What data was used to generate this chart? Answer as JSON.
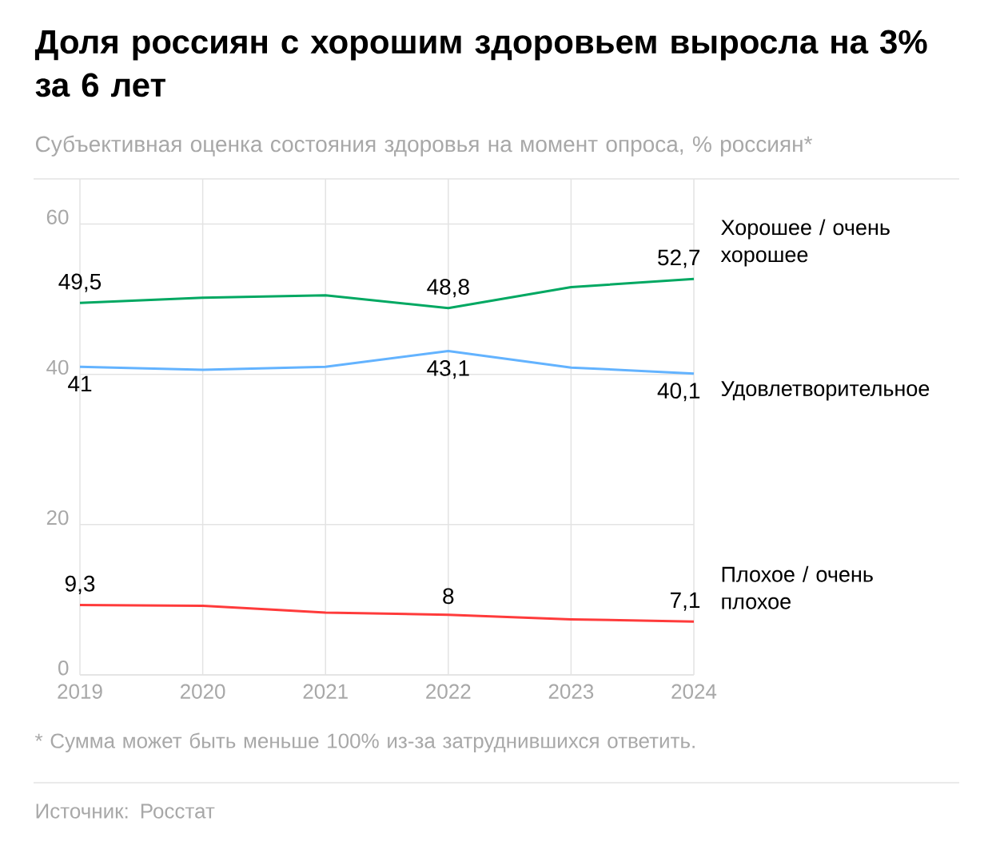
{
  "chart_data": {
    "type": "line",
    "title": "Доля россиян с хорошим здоровьем выросла на 3% за 6 лет",
    "subtitle": "Субъективная оценка состояния здоровья на момент опроса, % россиян*",
    "categories": [
      "2019",
      "2020",
      "2021",
      "2022",
      "2023",
      "2024"
    ],
    "series": [
      {
        "name": "Хорошее / очень хорошее",
        "color": "#00a862",
        "values": [
          49.5,
          50.2,
          50.5,
          48.8,
          51.6,
          52.7
        ],
        "value_labels": [
          "49,5",
          null,
          null,
          "48,8",
          null,
          "52,7"
        ]
      },
      {
        "name": "Удовлетворительное",
        "color": "#63b3ff",
        "values": [
          41,
          40.6,
          41.0,
          43.1,
          40.9,
          40.1
        ],
        "value_labels": [
          "41",
          null,
          null,
          "43,1",
          null,
          "40,1"
        ]
      },
      {
        "name": "Плохое / очень плохое",
        "color": "#ff3b3b",
        "values": [
          9.3,
          9.2,
          8.3,
          8,
          7.4,
          7.1
        ],
        "value_labels": [
          "9,3",
          null,
          null,
          "8",
          null,
          "7,1"
        ]
      }
    ],
    "ylim": [
      0,
      66
    ],
    "yticks": [
      0,
      20,
      40,
      60
    ],
    "grid": true,
    "legend": false,
    "marker": "none",
    "line_style": "solid",
    "annotations": [
      "* Сумма может быть меньше 100% из-за затруднившихся ответить.",
      "Источник: Росстат"
    ]
  }
}
